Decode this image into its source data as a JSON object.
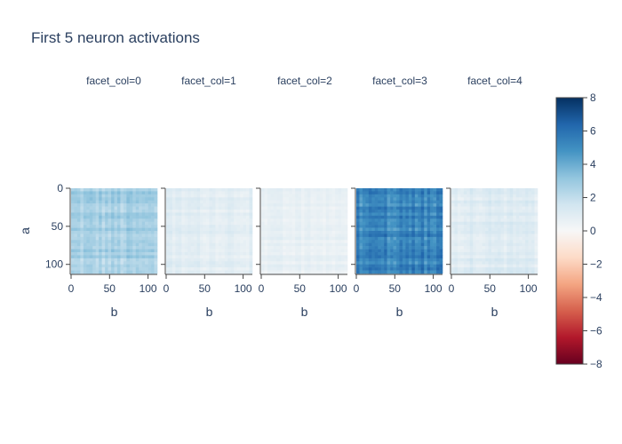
{
  "title": "First 5 neuron activations",
  "chart_data": {
    "type": "heatmap",
    "title": "First 5 neuron activations",
    "xlabel": "b",
    "ylabel": "a",
    "x_range": [
      0,
      112
    ],
    "y_range": [
      0,
      112
    ],
    "x_ticks": [
      0,
      50,
      100
    ],
    "y_ticks": [
      0,
      50,
      100
    ],
    "facets": [
      {
        "label": "facet_col=0",
        "level": 2.6,
        "spread": 0.9
      },
      {
        "label": "facet_col=1",
        "level": 0.9,
        "spread": 0.5
      },
      {
        "label": "facet_col=2",
        "level": 0.6,
        "spread": 0.4
      },
      {
        "label": "facet_col=3",
        "level": 5.2,
        "spread": 1.2
      },
      {
        "label": "facet_col=4",
        "level": 1.0,
        "spread": 0.6
      }
    ],
    "colorscale": {
      "name": "RdBu",
      "range": [
        -8,
        8
      ],
      "ticks": [
        8,
        6,
        4,
        2,
        0,
        -2,
        -4,
        -6,
        -8
      ],
      "colors": [
        "#67001f",
        "#b2182b",
        "#d6604d",
        "#f4a582",
        "#fddbc7",
        "#f7f7f7",
        "#d1e5f0",
        "#92c5de",
        "#4393c3",
        "#2166ac",
        "#053061"
      ]
    }
  }
}
